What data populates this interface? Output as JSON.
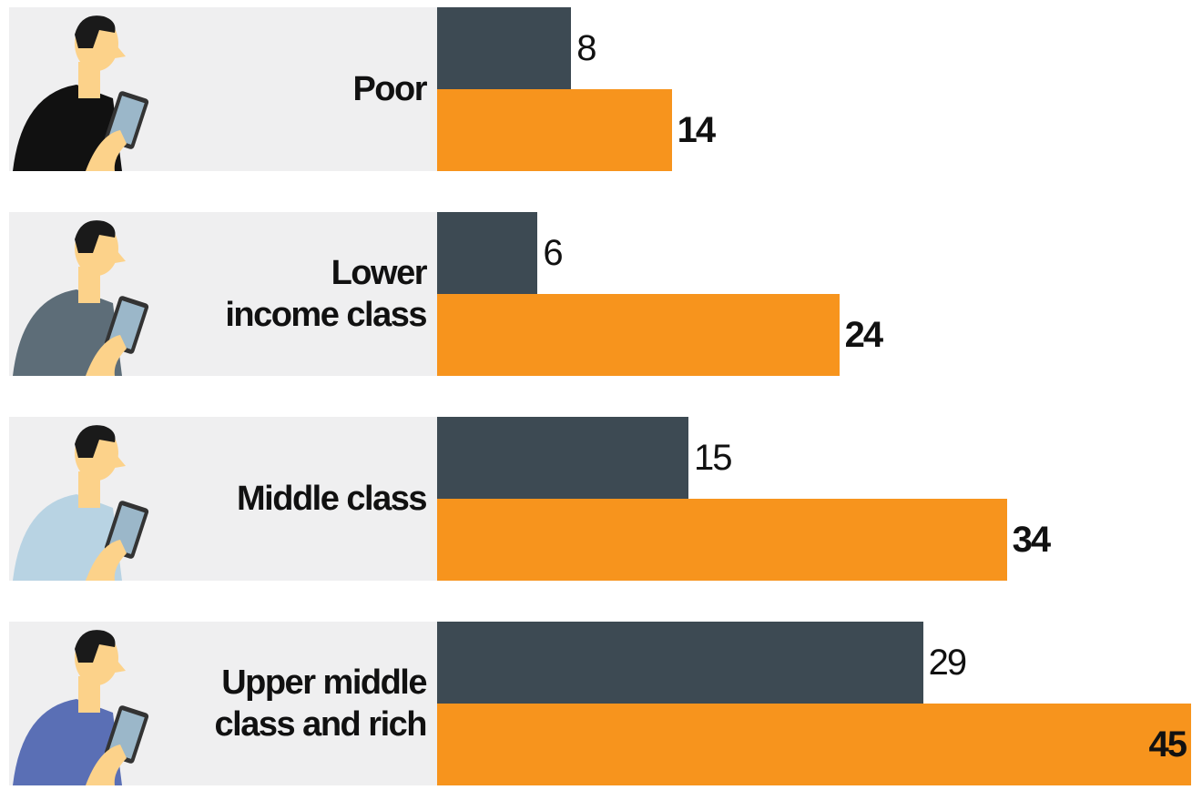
{
  "chart_data": {
    "type": "bar",
    "orientation": "horizontal",
    "categories": [
      "Poor",
      "Lower\nincome class",
      "Middle class",
      "Upper middle\nclass and rich"
    ],
    "series": [
      {
        "color": "#3d4a53",
        "values": [
          8,
          6,
          15,
          29
        ]
      },
      {
        "color": "#f7941d",
        "values": [
          14,
          24,
          34,
          45
        ]
      }
    ]
  }
}
